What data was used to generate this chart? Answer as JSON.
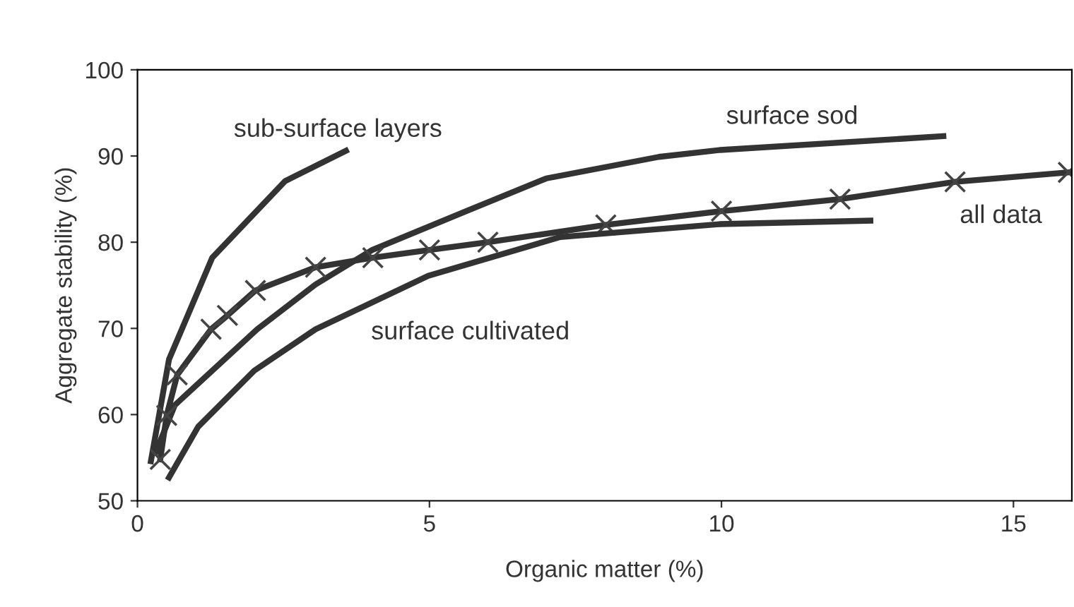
{
  "chart_data": {
    "type": "line",
    "xlabel": "Organic matter (%)",
    "ylabel": "Aggregate stability (%)",
    "xlim": [
      0,
      16
    ],
    "ylim": [
      50,
      100
    ],
    "xticks": [
      0,
      5,
      10,
      15
    ],
    "yticks": [
      50,
      60,
      70,
      80,
      90,
      100
    ],
    "grid": false,
    "line_style": "solid",
    "series": [
      {
        "name": "sub-surface layers",
        "color": "#333333",
        "marker": "none",
        "x": [
          0.23,
          0.54,
          1.28,
          2.53,
          3.57
        ],
        "values": [
          54.6,
          66.4,
          78.2,
          87.1,
          90.6
        ]
      },
      {
        "name": "surface sod",
        "color": "#333333",
        "marker": "none",
        "x": [
          0.31,
          0.64,
          2.05,
          3.05,
          4.02,
          5.63,
          7.0,
          8.93,
          9.98,
          13.8
        ],
        "values": [
          55.6,
          61.1,
          69.9,
          75.1,
          79.1,
          83.6,
          87.4,
          89.9,
          90.7,
          92.3
        ]
      },
      {
        "name": "all data",
        "color": "#333333",
        "marker": "cross",
        "x": [
          0.39,
          0.5,
          0.68,
          1.26,
          1.54,
          2.02,
          3.05,
          4.03,
          5.0,
          6.0,
          8.02,
          10.0,
          12.03,
          14.0,
          15.94
        ],
        "values": [
          54.8,
          59.9,
          64.6,
          69.9,
          71.5,
          74.4,
          77.1,
          78.2,
          79.1,
          80.0,
          82.0,
          83.6,
          85.0,
          87.0,
          88.1
        ]
      },
      {
        "name": "surface cultivated",
        "color": "#333333",
        "marker": "none",
        "x": [
          0.54,
          1.04,
          2.0,
          3.05,
          4.98,
          7.24,
          9.98,
          12.55
        ],
        "values": [
          52.7,
          58.6,
          65.1,
          69.9,
          76.1,
          80.6,
          82.1,
          82.5
        ]
      }
    ]
  }
}
